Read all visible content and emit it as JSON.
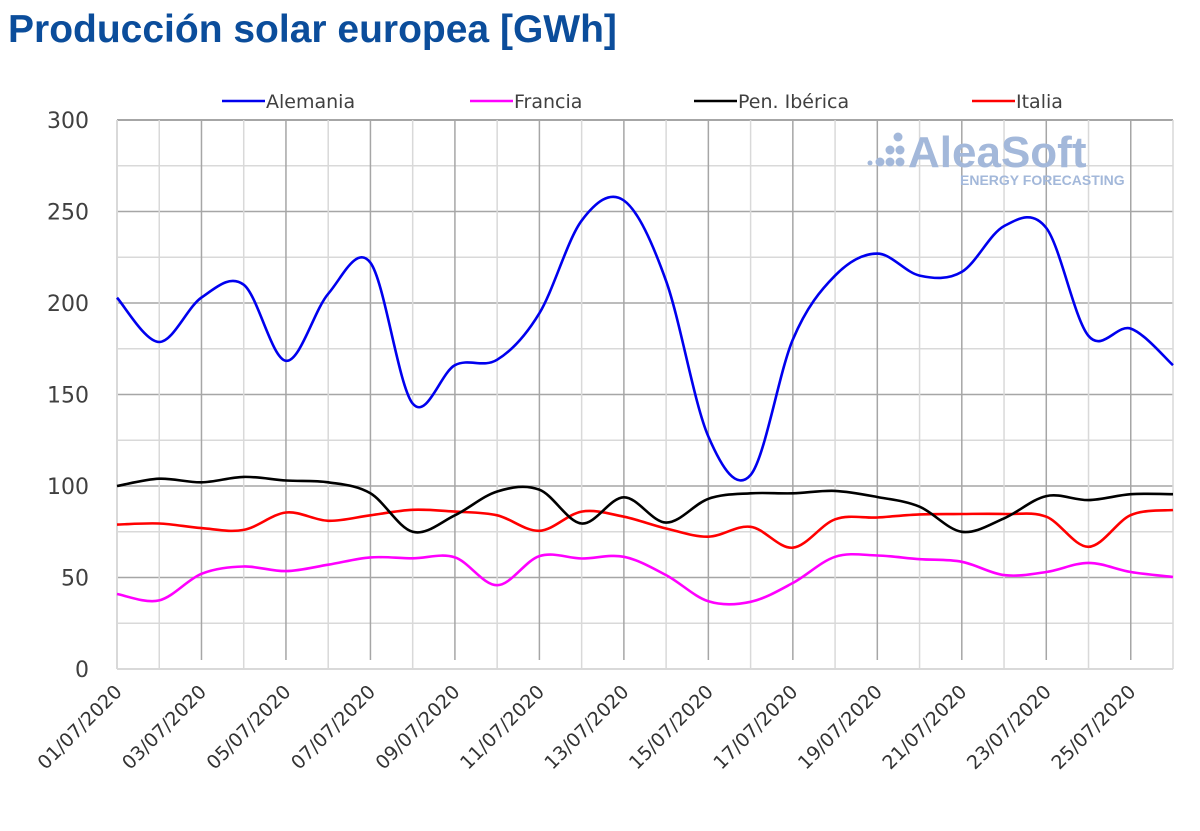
{
  "chart_data": {
    "type": "line",
    "title": "Producción solar europea [GWh]",
    "xlabel": "",
    "ylabel": "",
    "ylim": [
      0,
      300
    ],
    "yticks": [
      "0",
      "50",
      "100",
      "150",
      "200",
      "250",
      "300"
    ],
    "grid": true,
    "legend_position": "top",
    "x": [
      "01/07/2020",
      "02/07/2020",
      "03/07/2020",
      "04/07/2020",
      "05/07/2020",
      "06/07/2020",
      "07/07/2020",
      "08/07/2020",
      "09/07/2020",
      "10/07/2020",
      "11/07/2020",
      "12/07/2020",
      "13/07/2020",
      "14/07/2020",
      "15/07/2020",
      "16/07/2020",
      "17/07/2020",
      "18/07/2020",
      "19/07/2020",
      "20/07/2020",
      "21/07/2020",
      "22/07/2020",
      "23/07/2020",
      "24/07/2020",
      "25/07/2020",
      "26/07/2020"
    ],
    "xtick_labels": [
      "01/07/2020",
      "03/07/2020",
      "05/07/2020",
      "07/07/2020",
      "09/07/2020",
      "11/07/2020",
      "13/07/2020",
      "15/07/2020",
      "17/07/2020",
      "19/07/2020",
      "21/07/2020",
      "23/07/2020",
      "25/07/2020"
    ],
    "series": [
      {
        "name": "Alemania",
        "color": "#0000ee",
        "values": [
          202.9,
          178.7,
          203,
          210,
          168.4,
          205,
          222,
          145,
          166,
          169,
          194.4,
          245,
          256,
          212,
          127,
          106,
          180,
          215,
          227,
          215,
          217,
          242,
          241,
          182,
          186,
          166
        ]
      },
      {
        "name": "Francia",
        "color": "#ff00ff",
        "values": [
          41,
          37.5,
          52,
          56,
          53.5,
          57,
          61,
          60.5,
          61,
          45.8,
          61.7,
          60.4,
          61.3,
          51.3,
          37,
          36.7,
          47,
          61.3,
          62,
          60,
          58.6,
          51.3,
          53,
          58,
          53,
          50.3
        ]
      },
      {
        "name": "Pen. Ibérica",
        "color": "#000000",
        "values": [
          100,
          104,
          102,
          105,
          103,
          102,
          96,
          75,
          84,
          97,
          98,
          79.5,
          93.8,
          80,
          93,
          96,
          96,
          97.3,
          94,
          88.7,
          75,
          82.3,
          94.5,
          92.3,
          95.5,
          95.5
        ]
      },
      {
        "name": "Italia",
        "color": "#ff0000",
        "values": [
          78.9,
          79.5,
          77,
          76,
          85.5,
          81,
          84,
          87,
          86,
          84,
          75.5,
          86,
          83.2,
          76.8,
          72.3,
          77.7,
          66.3,
          81.8,
          82.8,
          84.5,
          84.7,
          84.7,
          83.2,
          66.8,
          84.1,
          86.9
        ]
      }
    ]
  },
  "logo": {
    "name": "AleaSoft",
    "tagline": "ENERGY FORECASTING",
    "color": "#a3b8da"
  }
}
